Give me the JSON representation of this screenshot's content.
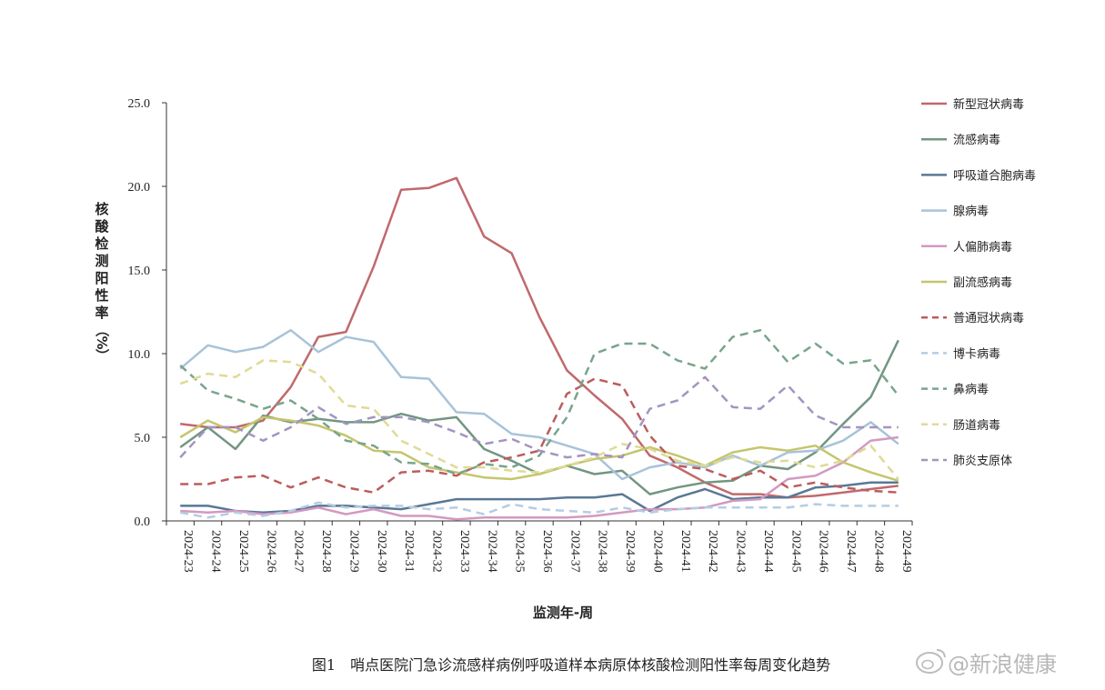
{
  "chart_data": {
    "type": "line",
    "caption": "图1　哨点医院门急诊流感样病例呼吸道样本病原体核酸检测阳性率每周变化趋势",
    "xlabel": "监测年-周",
    "ylabel": "核酸检测阳性率（%）",
    "ylim": [
      0,
      25
    ],
    "yticks": [
      "0.0",
      "5.0",
      "10.0",
      "15.0",
      "20.0",
      "25.0"
    ],
    "grid": false,
    "legend_position": "right",
    "categories": [
      "2024-23",
      "2024-24",
      "2024-25",
      "2024-26",
      "2024-27",
      "2024-28",
      "2024-29",
      "2024-30",
      "2024-31",
      "2024-32",
      "2024-33",
      "2024-34",
      "2024-35",
      "2024-36",
      "2024-37",
      "2024-38",
      "2024-39",
      "2024-40",
      "2024-41",
      "2024-42",
      "2024-43",
      "2024-44",
      "2024-45",
      "2024-46",
      "2024-47",
      "2024-48",
      "2024-49"
    ],
    "series": [
      {
        "name": "新型冠状病毒",
        "color": "#c0696b",
        "dash": "solid",
        "values": [
          5.8,
          5.6,
          5.6,
          6.0,
          8.0,
          11.0,
          11.3,
          15.2,
          19.8,
          19.9,
          20.5,
          17.0,
          16.0,
          12.2,
          9.0,
          7.5,
          6.1,
          3.9,
          3.2,
          2.3,
          1.6,
          1.6,
          1.4,
          1.5,
          1.7,
          1.9,
          2.1
        ]
      },
      {
        "name": "流感病毒",
        "color": "#729682",
        "dash": "solid",
        "values": [
          4.4,
          5.6,
          4.3,
          6.3,
          5.9,
          6.1,
          5.9,
          5.9,
          6.4,
          6.0,
          6.2,
          4.3,
          3.6,
          2.8,
          3.3,
          2.8,
          3.0,
          1.6,
          2.0,
          2.3,
          2.4,
          3.3,
          3.1,
          4.1,
          5.8,
          7.4,
          10.8
        ]
      },
      {
        "name": "呼吸道合胞病毒",
        "color": "#5a7895",
        "dash": "solid",
        "values": [
          0.9,
          0.9,
          0.6,
          0.5,
          0.6,
          0.9,
          0.9,
          0.8,
          0.7,
          1.0,
          1.3,
          1.3,
          1.3,
          1.3,
          1.4,
          1.4,
          1.6,
          0.6,
          1.4,
          1.9,
          1.3,
          1.4,
          1.4,
          2.0,
          2.1,
          2.3,
          2.3
        ]
      },
      {
        "name": "腺病毒",
        "color": "#a8c3d9",
        "dash": "solid",
        "values": [
          9.1,
          10.5,
          10.1,
          10.4,
          11.4,
          10.1,
          11.0,
          10.7,
          8.6,
          8.5,
          6.5,
          6.4,
          5.2,
          5.0,
          4.5,
          4.0,
          2.5,
          3.2,
          3.5,
          3.2,
          3.9,
          3.3,
          4.1,
          4.2,
          4.8,
          5.9,
          4.6
        ]
      },
      {
        "name": "人偏肺病毒",
        "color": "#d399c0",
        "dash": "solid",
        "values": [
          0.6,
          0.5,
          0.6,
          0.4,
          0.5,
          0.8,
          0.4,
          0.7,
          0.3,
          0.3,
          0.1,
          0.2,
          0.2,
          0.2,
          0.2,
          0.3,
          0.5,
          0.7,
          0.7,
          0.8,
          1.2,
          1.3,
          2.5,
          2.7,
          3.5,
          4.8,
          5.0
        ]
      },
      {
        "name": "副流感病毒",
        "color": "#c5c56e",
        "dash": "solid",
        "values": [
          5.0,
          6.0,
          5.3,
          6.2,
          6.0,
          5.7,
          5.1,
          4.2,
          4.1,
          3.2,
          2.9,
          2.6,
          2.5,
          2.8,
          3.3,
          3.7,
          3.9,
          4.4,
          3.9,
          3.3,
          4.1,
          4.4,
          4.2,
          4.5,
          3.5,
          2.9,
          2.4
        ]
      },
      {
        "name": "普通冠状病毒",
        "color": "#bc5c5c",
        "dash": "dashed",
        "values": [
          2.2,
          2.2,
          2.6,
          2.7,
          2.0,
          2.6,
          2.0,
          1.7,
          2.9,
          3.0,
          2.7,
          3.5,
          3.8,
          4.2,
          7.6,
          8.5,
          8.1,
          5.1,
          3.3,
          3.1,
          2.5,
          3.0,
          2.0,
          2.3,
          2.0,
          1.8,
          1.7
        ]
      },
      {
        "name": "博卡病毒",
        "color": "#b3cde3",
        "dash": "dashed",
        "values": [
          0.5,
          0.2,
          0.5,
          0.3,
          0.6,
          1.1,
          0.8,
          0.9,
          0.9,
          0.7,
          0.8,
          0.4,
          1.0,
          0.7,
          0.6,
          0.5,
          0.8,
          0.5,
          0.7,
          0.8,
          0.8,
          0.8,
          0.8,
          1.0,
          0.9,
          0.9,
          0.9
        ]
      },
      {
        "name": "鼻病毒",
        "color": "#77a58b",
        "dash": "dashed",
        "values": [
          9.3,
          7.8,
          7.3,
          6.7,
          7.2,
          6.1,
          4.8,
          4.5,
          3.5,
          3.4,
          2.8,
          3.4,
          3.2,
          3.9,
          6.2,
          10.0,
          10.6,
          10.6,
          9.6,
          9.1,
          11.0,
          11.4,
          9.5,
          10.6,
          9.4,
          9.6,
          7.5
        ]
      },
      {
        "name": "肠道病毒",
        "color": "#dedb96",
        "dash": "dashed",
        "values": [
          8.2,
          8.8,
          8.6,
          9.6,
          9.5,
          8.8,
          6.9,
          6.7,
          4.8,
          4.0,
          3.2,
          3.2,
          3.0,
          2.9,
          3.3,
          3.8,
          4.6,
          4.3,
          3.6,
          3.3,
          3.8,
          3.5,
          3.6,
          3.2,
          3.6,
          4.5,
          2.5
        ]
      },
      {
        "name": "肺炎支原体",
        "color": "#a394c0",
        "dash": "dashed",
        "values": [
          3.8,
          5.6,
          5.6,
          4.8,
          5.6,
          6.8,
          5.8,
          6.2,
          6.2,
          5.9,
          5.3,
          4.6,
          4.9,
          4.2,
          3.8,
          4.0,
          3.8,
          6.7,
          7.2,
          8.6,
          6.8,
          6.7,
          8.1,
          6.3,
          5.6,
          5.6,
          5.6
        ]
      }
    ]
  },
  "watermark": {
    "text": "@新浪健康"
  }
}
